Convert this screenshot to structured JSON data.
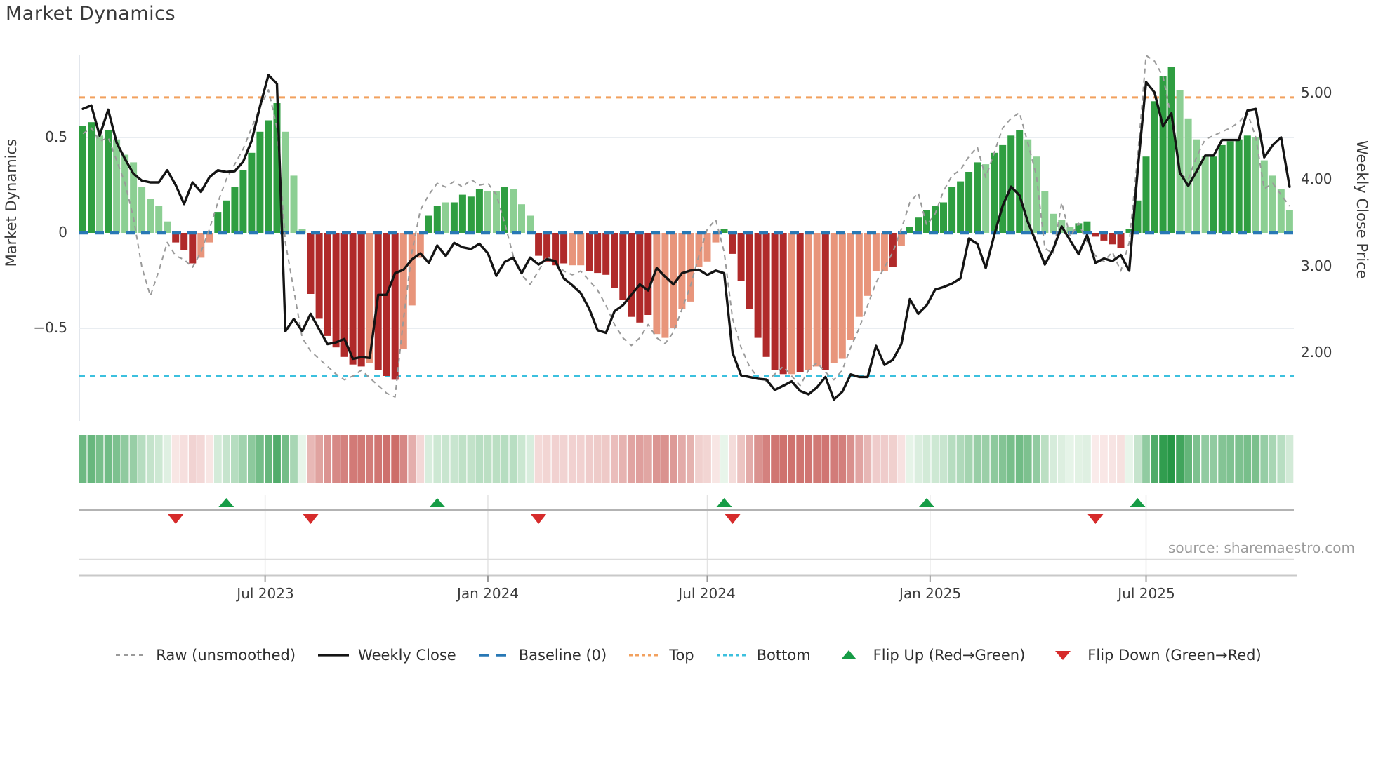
{
  "title": "Market Dynamics",
  "source": "source: sharemaestro.com",
  "axes": {
    "left": {
      "label": "Market Dynamics",
      "ticks": [
        {
          "label": "0.5",
          "value": 0.5
        },
        {
          "label": "0",
          "value": 0
        },
        {
          "label": "−0.5",
          "value": -0.5
        }
      ]
    },
    "right": {
      "label": "Weekly Close Price",
      "ticks": [
        {
          "label": "5.00",
          "price": 5.0
        },
        {
          "label": "4.00",
          "price": 4.0
        },
        {
          "label": "3.00",
          "price": 3.0
        },
        {
          "label": "2.00",
          "price": 2.0
        }
      ]
    },
    "x": {
      "ticks": [
        {
          "label": "Jul 2023",
          "week": 21.6
        },
        {
          "label": "Jan 2024",
          "week": 48.0
        },
        {
          "label": "Jul 2024",
          "week": 74.0
        },
        {
          "label": "Jan 2025",
          "week": 100.4
        },
        {
          "label": "Jul 2025",
          "week": 126.0
        }
      ]
    }
  },
  "legend": {
    "items": [
      {
        "label": "Raw (unsmoothed)",
        "swatch": "raw-dash"
      },
      {
        "label": "Weekly Close",
        "swatch": "close-line"
      },
      {
        "label": "Baseline (0)",
        "swatch": "baseline-dash"
      },
      {
        "label": "Top",
        "swatch": "top-dots"
      },
      {
        "label": "Bottom",
        "swatch": "bottom-dots"
      },
      {
        "label": "Flip Up (Red→Green)",
        "swatch": "up-triangle"
      },
      {
        "label": "Flip Down (Green→Red)",
        "swatch": "down-triangle"
      }
    ]
  },
  "palette": {
    "dark_green": "#2f9e41",
    "light_green": "#8ccf93",
    "dark_red": "#b02a2a",
    "salmon": "#e8957b",
    "baseline_blue": "#2878b5",
    "top_orange": "#f2a15f",
    "bottom_cyan": "#3cc0de",
    "close_black": "#141414",
    "raw_gray": "#9a9a9a",
    "flip_up_green": "#169c46",
    "flip_down_red": "#d62b2b",
    "grid": "#e9edf1",
    "spine": "#d9dee5",
    "heat_green_lo": "#edf7ee",
    "heat_green_hi": "#1f9440",
    "heat_red_lo": "#fbeeed",
    "heat_red_hi": "#c55753"
  },
  "chart_data": {
    "type": "bar",
    "subtype": "oscillator+price combo, weekly",
    "weeks_count": 144,
    "ylim_left": [
      -0.95,
      1.0
    ],
    "ylim_right": [
      1.35,
      5.6
    ],
    "baseline": 0,
    "top_line": 0.71,
    "bottom_line": -0.75,
    "legend_position": "bottom",
    "grid": "horizontal at ±0.5",
    "osc": [
      0.56,
      0.58,
      0.51,
      0.54,
      0.49,
      0.41,
      0.37,
      0.24,
      0.18,
      0.14,
      0.06,
      -0.05,
      -0.09,
      -0.16,
      -0.13,
      -0.05,
      0.11,
      0.17,
      0.24,
      0.33,
      0.42,
      0.53,
      0.59,
      0.68,
      0.53,
      0.3,
      0.02,
      -0.32,
      -0.45,
      -0.54,
      -0.6,
      -0.65,
      -0.69,
      -0.7,
      -0.68,
      -0.72,
      -0.75,
      -0.77,
      -0.61,
      -0.38,
      -0.13,
      0.09,
      0.14,
      0.16,
      0.16,
      0.2,
      0.19,
      0.23,
      0.22,
      0.22,
      0.24,
      0.23,
      0.15,
      0.09,
      -0.12,
      -0.15,
      -0.17,
      -0.16,
      -0.17,
      -0.17,
      -0.2,
      -0.21,
      -0.22,
      -0.29,
      -0.35,
      -0.44,
      -0.47,
      -0.43,
      -0.53,
      -0.55,
      -0.5,
      -0.4,
      -0.36,
      -0.18,
      -0.15,
      -0.05,
      0.02,
      -0.11,
      -0.25,
      -0.4,
      -0.55,
      -0.65,
      -0.72,
      -0.74,
      -0.74,
      -0.73,
      -0.72,
      -0.7,
      -0.72,
      -0.68,
      -0.66,
      -0.56,
      -0.44,
      -0.33,
      -0.2,
      -0.2,
      -0.18,
      -0.07,
      0.03,
      0.08,
      0.12,
      0.14,
      0.16,
      0.24,
      0.27,
      0.32,
      0.37,
      0.36,
      0.42,
      0.46,
      0.51,
      0.54,
      0.49,
      0.4,
      0.22,
      0.1,
      0.07,
      0.03,
      0.05,
      0.06,
      -0.02,
      -0.04,
      -0.06,
      -0.08,
      0.02,
      0.17,
      0.4,
      0.69,
      0.82,
      0.87,
      0.75,
      0.6,
      0.49,
      0.4,
      0.4,
      0.46,
      0.48,
      0.49,
      0.51,
      0.5,
      0.38,
      0.3,
      0.23,
      0.12
    ],
    "bar_colors": "DDLDLLLLLLLRRRSSDDDDDDDDLLLRRRRRRRSRRRSSSDDLDDDDLLDLLLRRRRSSRRRRRRRRSSSSSSSSDRRRRRRRSRSSRSSSSSSSRSDDDDDDDDDLDDDDLLLLLLDDRRRRDDDDDDLLLLDDDDDLLLLL",
    "close": [
      4.82,
      4.86,
      4.51,
      4.81,
      4.43,
      4.24,
      4.07,
      3.99,
      3.97,
      3.97,
      4.11,
      3.94,
      3.72,
      3.97,
      3.86,
      4.03,
      4.11,
      4.09,
      4.1,
      4.21,
      4.45,
      4.85,
      5.21,
      5.11,
      2.25,
      2.39,
      2.25,
      2.45,
      2.27,
      2.1,
      2.12,
      2.16,
      1.93,
      1.95,
      1.94,
      2.67,
      2.67,
      2.92,
      2.96,
      3.08,
      3.15,
      3.04,
      3.24,
      3.12,
      3.27,
      3.22,
      3.2,
      3.26,
      3.15,
      2.89,
      3.05,
      3.1,
      2.92,
      3.1,
      3.02,
      3.08,
      3.06,
      2.86,
      2.78,
      2.69,
      2.51,
      2.26,
      2.23,
      2.48,
      2.55,
      2.67,
      2.79,
      2.72,
      2.98,
      2.88,
      2.79,
      2.92,
      2.95,
      2.96,
      2.9,
      2.95,
      2.92,
      2.0,
      1.74,
      1.72,
      1.7,
      1.69,
      1.57,
      1.62,
      1.67,
      1.56,
      1.52,
      1.6,
      1.72,
      1.46,
      1.55,
      1.75,
      1.72,
      1.72,
      2.08,
      1.86,
      1.92,
      2.1,
      2.62,
      2.45,
      2.55,
      2.73,
      2.76,
      2.8,
      2.86,
      3.32,
      3.26,
      2.98,
      3.36,
      3.7,
      3.92,
      3.82,
      3.51,
      3.27,
      3.02,
      3.2,
      3.46,
      3.3,
      3.14,
      3.36,
      3.04,
      3.09,
      3.06,
      3.13,
      2.95,
      4.11,
      5.13,
      5.01,
      4.62,
      4.77,
      4.08,
      3.93,
      4.1,
      4.28,
      4.28,
      4.46,
      4.46,
      4.46,
      4.8,
      4.82,
      4.26,
      4.4,
      4.49,
      3.92
    ],
    "raw": [
      0.52,
      0.55,
      0.48,
      0.5,
      0.38,
      0.26,
      0.08,
      -0.18,
      -0.33,
      -0.2,
      -0.05,
      -0.12,
      -0.14,
      -0.18,
      -0.1,
      0.02,
      0.16,
      0.28,
      0.36,
      0.44,
      0.55,
      0.66,
      0.75,
      0.55,
      -0.05,
      -0.3,
      -0.55,
      -0.62,
      -0.66,
      -0.7,
      -0.74,
      -0.77,
      -0.75,
      -0.72,
      -0.76,
      -0.8,
      -0.84,
      -0.86,
      -0.45,
      -0.1,
      0.12,
      0.2,
      0.26,
      0.24,
      0.27,
      0.24,
      0.28,
      0.25,
      0.26,
      0.2,
      0.05,
      -0.12,
      -0.22,
      -0.27,
      -0.2,
      -0.12,
      -0.16,
      -0.2,
      -0.22,
      -0.2,
      -0.25,
      -0.3,
      -0.38,
      -0.48,
      -0.55,
      -0.59,
      -0.55,
      -0.48,
      -0.55,
      -0.58,
      -0.52,
      -0.4,
      -0.28,
      -0.12,
      0.02,
      0.07,
      -0.1,
      -0.45,
      -0.6,
      -0.7,
      -0.76,
      -0.78,
      -0.74,
      -0.7,
      -0.75,
      -0.8,
      -0.72,
      -0.68,
      -0.73,
      -0.77,
      -0.72,
      -0.6,
      -0.5,
      -0.38,
      -0.26,
      -0.18,
      -0.1,
      0.02,
      0.16,
      0.21,
      0.04,
      0.1,
      0.22,
      0.3,
      0.33,
      0.4,
      0.45,
      0.29,
      0.42,
      0.55,
      0.6,
      0.63,
      0.47,
      0.3,
      -0.08,
      -0.11,
      0.16,
      -0.02,
      0.05,
      -0.05,
      -0.12,
      -0.15,
      -0.1,
      -0.2,
      -0.05,
      0.4,
      0.93,
      0.9,
      0.82,
      0.6,
      0.31,
      0.28,
      0.4,
      0.49,
      0.51,
      0.53,
      0.55,
      0.58,
      0.63,
      0.5,
      0.23,
      0.26,
      0.2,
      0.14
    ],
    "flip_up_weeks": [
      17,
      42,
      76,
      100,
      125
    ],
    "flip_down_weeks": [
      11,
      27,
      54,
      77,
      120
    ]
  }
}
